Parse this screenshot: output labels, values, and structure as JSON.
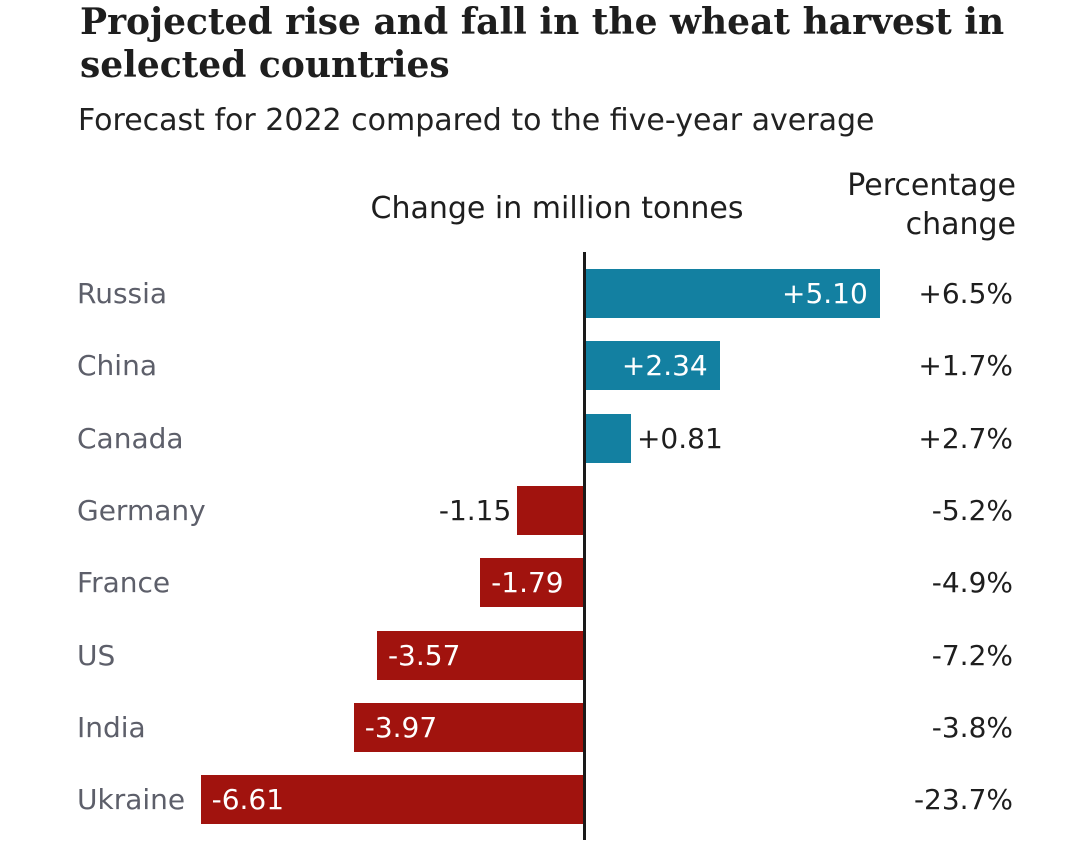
{
  "title": "Projected rise and fall in the wheat harvest in selected countries",
  "subtitle": "Forecast for 2022 compared to the five-year average",
  "chart_data": {
    "type": "bar",
    "orientation": "horizontal",
    "title": "Projected rise and fall in the wheat harvest in selected countries",
    "subtitle": "Forecast for 2022 compared to the five-year average",
    "column_headers": {
      "bars": "Change in million tonnes",
      "percent": "Percentage change"
    },
    "categories": [
      "Russia",
      "China",
      "Canada",
      "Germany",
      "France",
      "US",
      "India",
      "Ukraine"
    ],
    "series": [
      {
        "name": "Change in million tonnes",
        "values": [
          5.1,
          2.34,
          0.81,
          -1.15,
          -1.79,
          -3.57,
          -3.97,
          -6.61
        ],
        "labels": [
          "+5.10",
          "+2.34",
          "+0.81",
          "-1.15",
          "-1.79",
          "-3.57",
          "-3.97",
          "-6.61"
        ]
      },
      {
        "name": "Percentage change",
        "labels": [
          "+6.5%",
          "+1.7%",
          "+2.7%",
          "-5.2%",
          "-4.9%",
          "-7.2%",
          "-3.8%",
          "-23.7%"
        ]
      }
    ],
    "xlim": [
      -6.8,
      5.2
    ],
    "grid": false,
    "legend": "none",
    "colors": {
      "positive_bar": "#1380A1",
      "negative_bar": "#A1130E",
      "axis_line": "#1a1a1a",
      "value_label_inside": "#ffffff",
      "value_label_outside": "#1e1e1e",
      "country_label": "#5d5f6a"
    }
  }
}
